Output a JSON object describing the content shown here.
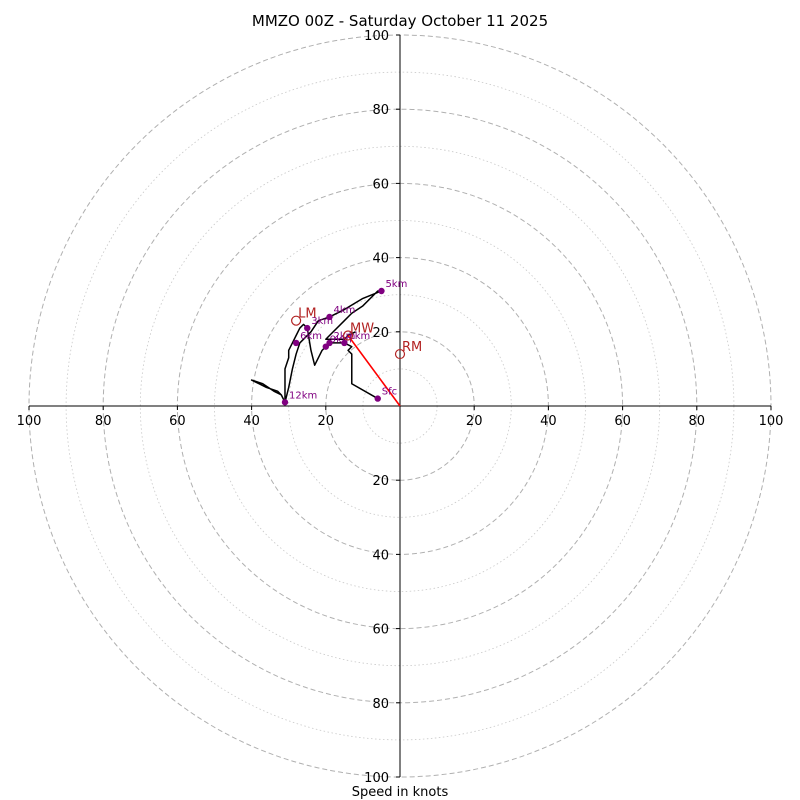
{
  "chart_data": {
    "type": "hodograph",
    "title": "MMZO 00Z - Saturday October 11 2025",
    "xlabel": "Speed in knots",
    "ylabel": "",
    "xlim": [
      -100,
      100
    ],
    "ylim": [
      -100,
      100
    ],
    "ticks": [
      -100,
      -80,
      -60,
      -40,
      -20,
      20,
      40,
      60,
      80,
      100
    ],
    "ring_radii": [
      10,
      20,
      30,
      40,
      50,
      60,
      70,
      80,
      90,
      100
    ],
    "ring_dashed": [
      20,
      40,
      60,
      80,
      100
    ],
    "hodograph_trace": [
      [
        -6,
        2
      ],
      [
        -13,
        6
      ],
      [
        -13,
        14
      ],
      [
        -14,
        15
      ],
      [
        -13,
        16
      ],
      [
        -15,
        17
      ],
      [
        -19,
        17
      ],
      [
        -20,
        16
      ],
      [
        -21,
        15
      ],
      [
        -23,
        11
      ],
      [
        -24,
        15
      ],
      [
        -25,
        21
      ],
      [
        -26,
        22
      ],
      [
        -27,
        21
      ],
      [
        -28,
        19
      ],
      [
        -29,
        17
      ],
      [
        -30,
        15
      ],
      [
        -30,
        13
      ],
      [
        -31,
        10
      ],
      [
        -31,
        6
      ],
      [
        -31,
        1
      ],
      [
        -32,
        3
      ],
      [
        -33,
        4
      ],
      [
        -36,
        5
      ],
      [
        -38,
        6
      ],
      [
        -40,
        7
      ],
      [
        -37,
        6
      ],
      [
        -34,
        4
      ],
      [
        -32,
        3
      ],
      [
        -31,
        1
      ],
      [
        -30,
        5
      ],
      [
        -29,
        10
      ],
      [
        -28,
        14
      ],
      [
        -27,
        17
      ],
      [
        -24,
        20
      ],
      [
        -22,
        23
      ],
      [
        -19,
        24
      ],
      [
        -15,
        26
      ],
      [
        -10,
        29
      ],
      [
        -5,
        31
      ],
      [
        -6,
        31
      ],
      [
        -10,
        27
      ],
      [
        -13,
        25
      ],
      [
        -15,
        23
      ],
      [
        -19,
        19
      ],
      [
        -20,
        18
      ],
      [
        -17,
        18
      ],
      [
        -15,
        18
      ],
      [
        -14,
        19
      ],
      [
        -12,
        20
      ]
    ],
    "height_markers": [
      {
        "label": "Sfc",
        "u": -6,
        "v": 2
      },
      {
        "label": "1km",
        "u": -15,
        "v": 17
      },
      {
        "label": "2km",
        "u": -19,
        "v": 17
      },
      {
        "label": "3km",
        "u": -25,
        "v": 21
      },
      {
        "label": "4km",
        "u": -19,
        "v": 24
      },
      {
        "label": "5km",
        "u": -5,
        "v": 31
      },
      {
        "label": "6km",
        "u": -28,
        "v": 17
      },
      {
        "label": "9km",
        "u": -20,
        "v": 16
      },
      {
        "label": "12km",
        "u": -31,
        "v": 1
      }
    ],
    "motion_markers": [
      {
        "label": "LM",
        "u": -28,
        "v": 23
      },
      {
        "label": "MW",
        "u": -14,
        "v": 19
      },
      {
        "label": "RM",
        "u": 0,
        "v": 14
      }
    ],
    "shear_vector": {
      "from": [
        0,
        0
      ],
      "to": [
        -14,
        19
      ]
    },
    "colors": {
      "trace": "#000000",
      "height_marker": "#800080",
      "motion_marker": "#b22222",
      "shear": "#ff0000",
      "grid": "#b0b0b0"
    }
  }
}
